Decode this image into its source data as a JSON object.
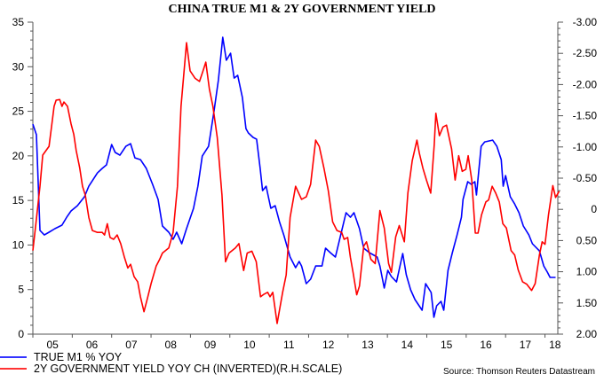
{
  "chart_data": {
    "type": "line",
    "title": "CHINA TRUE M1 & 2Y GOVERNMENT YIELD",
    "xlabel": "",
    "ylabel": "",
    "x_range": [
      2005.0,
      2018.4
    ],
    "x_ticks": [
      "05",
      "06",
      "07",
      "08",
      "09",
      "10",
      "11",
      "12",
      "13",
      "14",
      "15",
      "16",
      "17",
      "18"
    ],
    "left_axis": {
      "range": [
        0,
        35
      ],
      "ticks": [
        "0",
        "5",
        "10",
        "15",
        "20",
        "25",
        "30",
        "35"
      ],
      "minor_step": 1
    },
    "right_axis": {
      "range": [
        -3.0,
        2.0
      ],
      "inverted": true,
      "ticks": [
        "-3.00",
        "-2.50",
        "-2.00",
        "-1.50",
        "-1.00",
        "-0.50",
        "0",
        "0.50",
        "1.00",
        "1.50",
        "2.00"
      ],
      "minor_step": 0.1
    },
    "grid": false,
    "legend_position": "bottom-left",
    "series": [
      {
        "name": "TRUE M1 % YOY",
        "axis": "left",
        "color": "#0000ff",
        "points": [
          [
            2005.0,
            23.56
          ],
          [
            2005.09,
            22.37
          ],
          [
            2005.18,
            11.63
          ],
          [
            2005.29,
            11.13
          ],
          [
            2005.41,
            11.43
          ],
          [
            2005.56,
            11.83
          ],
          [
            2005.74,
            12.23
          ],
          [
            2005.86,
            13.12
          ],
          [
            2005.97,
            13.82
          ],
          [
            2006.13,
            14.41
          ],
          [
            2006.31,
            15.41
          ],
          [
            2006.42,
            16.6
          ],
          [
            2006.64,
            18.09
          ],
          [
            2006.76,
            18.59
          ],
          [
            2006.87,
            18.99
          ],
          [
            2007.0,
            21.27
          ],
          [
            2007.09,
            20.38
          ],
          [
            2007.21,
            20.08
          ],
          [
            2007.36,
            21.07
          ],
          [
            2007.48,
            21.37
          ],
          [
            2007.59,
            19.78
          ],
          [
            2007.73,
            19.58
          ],
          [
            2007.88,
            18.59
          ],
          [
            2008.04,
            16.8
          ],
          [
            2008.18,
            15.11
          ],
          [
            2008.29,
            12.13
          ],
          [
            2008.45,
            11.43
          ],
          [
            2008.56,
            10.64
          ],
          [
            2008.65,
            11.43
          ],
          [
            2008.78,
            10.14
          ],
          [
            2008.9,
            11.83
          ],
          [
            2009.08,
            14.12
          ],
          [
            2009.19,
            16.6
          ],
          [
            2009.3,
            19.98
          ],
          [
            2009.46,
            21.07
          ],
          [
            2009.6,
            25.05
          ],
          [
            2009.71,
            28.53
          ],
          [
            2009.82,
            33.3
          ],
          [
            2009.91,
            30.72
          ],
          [
            2010.02,
            31.51
          ],
          [
            2010.11,
            28.73
          ],
          [
            2010.2,
            29.03
          ],
          [
            2010.32,
            26.54
          ],
          [
            2010.41,
            23.06
          ],
          [
            2010.47,
            22.57
          ],
          [
            2010.59,
            22.07
          ],
          [
            2010.68,
            21.87
          ],
          [
            2010.77,
            18.59
          ],
          [
            2010.83,
            16.1
          ],
          [
            2010.92,
            16.6
          ],
          [
            2011.04,
            14.12
          ],
          [
            2011.15,
            14.41
          ],
          [
            2011.26,
            12.62
          ],
          [
            2011.37,
            11.13
          ],
          [
            2011.53,
            8.65
          ],
          [
            2011.67,
            7.46
          ],
          [
            2011.76,
            8.15
          ],
          [
            2011.82,
            7.65
          ],
          [
            2011.94,
            5.67
          ],
          [
            2012.05,
            6.16
          ],
          [
            2012.18,
            7.65
          ],
          [
            2012.34,
            7.65
          ],
          [
            2012.43,
            9.64
          ],
          [
            2012.55,
            9.15
          ],
          [
            2012.68,
            8.65
          ],
          [
            2012.95,
            13.62
          ],
          [
            2013.06,
            13.12
          ],
          [
            2013.15,
            13.62
          ],
          [
            2013.29,
            11.83
          ],
          [
            2013.4,
            9.64
          ],
          [
            2013.54,
            9.15
          ],
          [
            2013.74,
            8.65
          ],
          [
            2013.81,
            7.65
          ],
          [
            2013.92,
            5.17
          ],
          [
            2014.01,
            7.16
          ],
          [
            2014.1,
            6.46
          ],
          [
            2014.23,
            5.86
          ],
          [
            2014.39,
            9.05
          ],
          [
            2014.48,
            6.66
          ],
          [
            2014.59,
            4.97
          ],
          [
            2014.7,
            3.88
          ],
          [
            2014.88,
            2.68
          ],
          [
            2014.97,
            5.67
          ],
          [
            2015.11,
            4.67
          ],
          [
            2015.18,
            1.89
          ],
          [
            2015.25,
            3.18
          ],
          [
            2015.36,
            3.68
          ],
          [
            2015.43,
            2.68
          ],
          [
            2015.54,
            7.16
          ],
          [
            2015.65,
            9.15
          ],
          [
            2015.77,
            11.13
          ],
          [
            2015.88,
            13.12
          ],
          [
            2015.92,
            15.11
          ],
          [
            2016.04,
            17.1
          ],
          [
            2016.13,
            16.8
          ],
          [
            2016.22,
            17.1
          ],
          [
            2016.26,
            15.61
          ],
          [
            2016.38,
            21.07
          ],
          [
            2016.47,
            21.57
          ],
          [
            2016.67,
            21.77
          ],
          [
            2016.78,
            21.07
          ],
          [
            2016.89,
            19.58
          ],
          [
            2016.94,
            16.6
          ],
          [
            2017.0,
            17.79
          ],
          [
            2017.12,
            15.41
          ],
          [
            2017.23,
            14.61
          ],
          [
            2017.34,
            13.62
          ],
          [
            2017.45,
            12.13
          ],
          [
            2017.59,
            11.13
          ],
          [
            2017.68,
            10.14
          ],
          [
            2017.86,
            9.34
          ],
          [
            2017.97,
            7.65
          ],
          [
            2018.06,
            6.96
          ],
          [
            2018.13,
            6.36
          ],
          [
            2018.27,
            6.36
          ]
        ]
      },
      {
        "name": "2Y GOVERNMENT YIELD YOY CH (INVERTED)(R.H.SCALE)",
        "axis": "right",
        "color": "#ff0000",
        "points": [
          [
            2005.0,
            0.66
          ],
          [
            2005.07,
            0.27
          ],
          [
            2005.18,
            -0.37
          ],
          [
            2005.25,
            -0.87
          ],
          [
            2005.41,
            -1.01
          ],
          [
            2005.47,
            -1.3
          ],
          [
            2005.54,
            -1.65
          ],
          [
            2005.59,
            -1.75
          ],
          [
            2005.68,
            -1.76
          ],
          [
            2005.74,
            -1.65
          ],
          [
            2005.79,
            -1.72
          ],
          [
            2005.88,
            -1.65
          ],
          [
            2005.97,
            -1.37
          ],
          [
            2006.04,
            -1.2
          ],
          [
            2006.1,
            -0.94
          ],
          [
            2006.19,
            -0.66
          ],
          [
            2006.26,
            -0.37
          ],
          [
            2006.33,
            -0.23
          ],
          [
            2006.42,
            0.13
          ],
          [
            2006.51,
            0.34
          ],
          [
            2006.64,
            0.37
          ],
          [
            2006.76,
            0.37
          ],
          [
            2006.82,
            0.41
          ],
          [
            2006.89,
            0.23
          ],
          [
            2006.96,
            0.45
          ],
          [
            2007.05,
            0.48
          ],
          [
            2007.14,
            0.41
          ],
          [
            2007.23,
            0.55
          ],
          [
            2007.32,
            0.76
          ],
          [
            2007.41,
            0.94
          ],
          [
            2007.48,
            0.88
          ],
          [
            2007.57,
            1.08
          ],
          [
            2007.66,
            1.16
          ],
          [
            2007.73,
            1.4
          ],
          [
            2007.82,
            1.64
          ],
          [
            2007.91,
            1.42
          ],
          [
            2008.0,
            1.19
          ],
          [
            2008.13,
            0.91
          ],
          [
            2008.22,
            0.8
          ],
          [
            2008.29,
            0.7
          ],
          [
            2008.45,
            0.62
          ],
          [
            2008.56,
            0.37
          ],
          [
            2008.67,
            -0.37
          ],
          [
            2008.76,
            -1.65
          ],
          [
            2008.9,
            -2.67
          ],
          [
            2008.99,
            -2.22
          ],
          [
            2009.12,
            -2.1
          ],
          [
            2009.23,
            -2.05
          ],
          [
            2009.32,
            -2.22
          ],
          [
            2009.39,
            -2.36
          ],
          [
            2009.48,
            -1.93
          ],
          [
            2009.57,
            -1.65
          ],
          [
            2009.68,
            -1.15
          ],
          [
            2009.8,
            -0.23
          ],
          [
            2009.89,
            0.84
          ],
          [
            2009.98,
            0.7
          ],
          [
            2010.14,
            0.62
          ],
          [
            2010.23,
            0.55
          ],
          [
            2010.35,
            0.98
          ],
          [
            2010.44,
            0.7
          ],
          [
            2010.56,
            0.67
          ],
          [
            2010.67,
            0.84
          ],
          [
            2010.78,
            1.4
          ],
          [
            2010.87,
            1.36
          ],
          [
            2010.96,
            1.33
          ],
          [
            2011.02,
            1.4
          ],
          [
            2011.09,
            1.33
          ],
          [
            2011.2,
            1.83
          ],
          [
            2011.34,
            1.33
          ],
          [
            2011.43,
            1.05
          ],
          [
            2011.53,
            0.13
          ],
          [
            2011.67,
            -0.37
          ],
          [
            2011.82,
            -0.16
          ],
          [
            2011.94,
            -0.2
          ],
          [
            2012.05,
            -0.4
          ],
          [
            2012.18,
            -1.11
          ],
          [
            2012.27,
            -1.01
          ],
          [
            2012.39,
            -0.66
          ],
          [
            2012.5,
            -0.3
          ],
          [
            2012.61,
            0.2
          ],
          [
            2012.72,
            0.34
          ],
          [
            2012.84,
            0.37
          ],
          [
            2012.9,
            0.48
          ],
          [
            2012.99,
            0.45
          ],
          [
            2013.06,
            0.77
          ],
          [
            2013.13,
            1.02
          ],
          [
            2013.22,
            1.37
          ],
          [
            2013.29,
            1.23
          ],
          [
            2013.4,
            0.59
          ],
          [
            2013.47,
            0.52
          ],
          [
            2013.58,
            0.8
          ],
          [
            2013.69,
            0.87
          ],
          [
            2013.81,
            0.02
          ],
          [
            2013.92,
            0.3
          ],
          [
            2014.03,
            0.87
          ],
          [
            2014.1,
            1.01
          ],
          [
            2014.21,
            0.44
          ],
          [
            2014.3,
            0.26
          ],
          [
            2014.43,
            0.52
          ],
          [
            2014.52,
            -0.26
          ],
          [
            2014.63,
            -0.78
          ],
          [
            2014.75,
            -1.11
          ],
          [
            2014.81,
            -0.9
          ],
          [
            2014.9,
            -0.66
          ],
          [
            2014.99,
            -0.47
          ],
          [
            2015.1,
            -0.26
          ],
          [
            2015.19,
            -1.04
          ],
          [
            2015.23,
            -1.54
          ],
          [
            2015.32,
            -1.18
          ],
          [
            2015.41,
            -1.32
          ],
          [
            2015.5,
            -1.35
          ],
          [
            2015.63,
            -0.97
          ],
          [
            2015.72,
            -0.47
          ],
          [
            2015.81,
            -0.86
          ],
          [
            2015.9,
            -0.61
          ],
          [
            2015.99,
            -0.64
          ],
          [
            2016.05,
            -0.86
          ],
          [
            2016.14,
            -0.47
          ],
          [
            2016.23,
            0.38
          ],
          [
            2016.3,
            0.38
          ],
          [
            2016.39,
            0.09
          ],
          [
            2016.5,
            -0.12
          ],
          [
            2016.57,
            -0.15
          ],
          [
            2016.66,
            -0.37
          ],
          [
            2016.75,
            -0.26
          ],
          [
            2016.84,
            -0.12
          ],
          [
            2016.93,
            0.23
          ],
          [
            2017.02,
            0.3
          ],
          [
            2017.14,
            0.66
          ],
          [
            2017.23,
            0.73
          ],
          [
            2017.32,
            0.97
          ],
          [
            2017.43,
            1.16
          ],
          [
            2017.54,
            1.2
          ],
          [
            2017.66,
            1.3
          ],
          [
            2017.75,
            1.19
          ],
          [
            2017.86,
            0.73
          ],
          [
            2017.93,
            0.52
          ],
          [
            2018.0,
            0.56
          ],
          [
            2018.09,
            0.09
          ],
          [
            2018.2,
            -0.38
          ],
          [
            2018.27,
            -0.19
          ],
          [
            2018.36,
            -0.29
          ]
        ]
      }
    ]
  },
  "legend": {
    "items": [
      {
        "label": "TRUE M1 % YOY",
        "color": "#0000ff"
      },
      {
        "label": "2Y GOVERNMENT YIELD YOY CH (INVERTED)(R.H.SCALE)",
        "color": "#ff0000"
      }
    ]
  },
  "source": "Source: Thomson Reuters Datastream"
}
